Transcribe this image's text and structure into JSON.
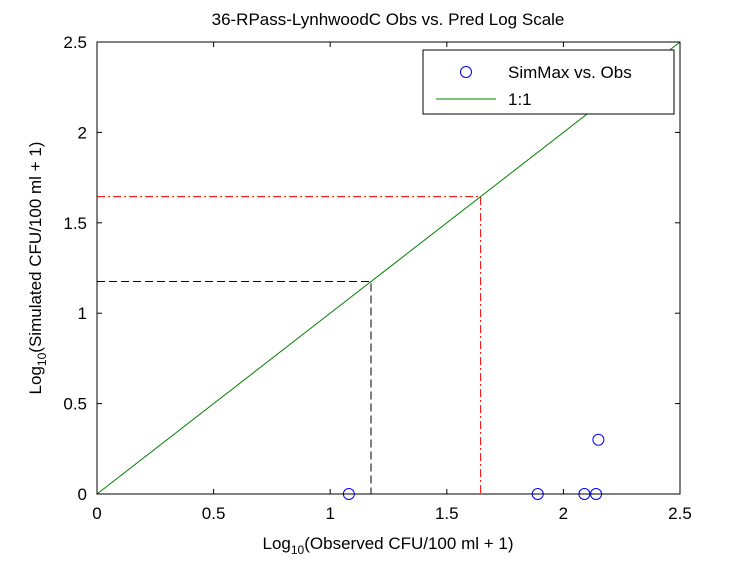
{
  "chart_data": {
    "type": "scatter",
    "title": "36-RPass-LynhwoodC Obs vs. Pred Log Scale",
    "xlabel": {
      "prefix": "Log",
      "sub": "10",
      "suffix": "(Observed CFU/100 ml + 1)"
    },
    "ylabel": {
      "prefix": "Log",
      "sub": "10",
      "suffix": "(Simulated CFU/100 ml + 1)"
    },
    "xlim": [
      0,
      2.5
    ],
    "ylim": [
      0,
      2.5
    ],
    "xticks": [
      "0",
      "0.5",
      "1",
      "1.5",
      "2",
      "2.5"
    ],
    "yticks": [
      "0",
      "0.5",
      "1",
      "1.5",
      "2",
      "2.5"
    ],
    "grid": false,
    "legend_position": "top-right",
    "series": [
      {
        "name": "SimMax vs. Obs",
        "kind": "markers",
        "marker": "circle",
        "color": "#0000ff",
        "points": [
          {
            "x": 1.08,
            "y": 0.0
          },
          {
            "x": 1.89,
            "y": 0.0
          },
          {
            "x": 2.09,
            "y": 0.0
          },
          {
            "x": 2.14,
            "y": 0.0
          },
          {
            "x": 2.15,
            "y": 0.3
          }
        ]
      },
      {
        "name": "1:1",
        "kind": "line",
        "color": "#008000",
        "points": [
          {
            "x": 0,
            "y": 0
          },
          {
            "x": 2.5,
            "y": 2.5
          }
        ]
      }
    ],
    "reference_lines": [
      {
        "color": "#000000",
        "style": "dashed",
        "value": 1.175
      },
      {
        "color": "#ff0000",
        "style": "dashdot",
        "value": 1.645
      }
    ]
  }
}
